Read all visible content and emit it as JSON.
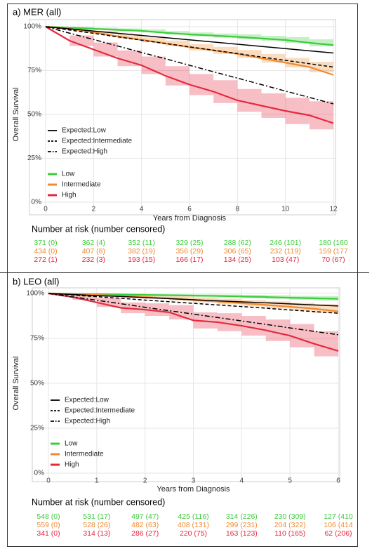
{
  "chart_data": [
    {
      "type": "line",
      "title": "a)  MER (all)",
      "xlabel": "Years from Diagnosis",
      "ylabel": "Overall Survival",
      "x": [
        0,
        1,
        2,
        3,
        4,
        5,
        6,
        7,
        8,
        9,
        10,
        11,
        12
      ],
      "xlim": [
        0,
        12
      ],
      "xticks": [
        0,
        2,
        4,
        6,
        8,
        10,
        12
      ],
      "ylim": [
        0,
        100
      ],
      "yticks": [
        {
          "value": 0,
          "label": "0%"
        },
        {
          "value": 25,
          "label": "25%"
        },
        {
          "value": 50,
          "label": "50%"
        },
        {
          "value": 75,
          "label": "75%"
        },
        {
          "value": 100,
          "label": "100%"
        }
      ],
      "grid": true,
      "series": [
        {
          "name": "Expected:Low",
          "color": "#000000",
          "linestyle": "solid",
          "values": [
            100,
            98.75,
            97.5,
            96.25,
            95,
            93.75,
            92.5,
            91.25,
            90,
            88.75,
            87.5,
            86.25,
            85
          ]
        },
        {
          "name": "Expected:Intermediate",
          "color": "#000000",
          "linestyle": "dashed",
          "values": [
            100,
            98.1,
            96.2,
            94.2,
            92.3,
            90.4,
            88.5,
            86.6,
            84.7,
            82.7,
            80.8,
            78.9,
            77
          ]
        },
        {
          "name": "Expected:High",
          "color": "#000000",
          "linestyle": "dashdot",
          "values": [
            100,
            96.3,
            92.7,
            89,
            85.3,
            81.7,
            78,
            74.3,
            70.7,
            67,
            63.3,
            59.7,
            56
          ]
        },
        {
          "name": "Low",
          "color": "#3dcc3d",
          "linestyle": "solid",
          "values": [
            100,
            99.4,
            98.8,
            98.2,
            97.6,
            96.5,
            95.6,
            94.9,
            94.2,
            93.3,
            92.4,
            90.8,
            89.5
          ],
          "band_lower": [
            100,
            99,
            98.2,
            97.4,
            96.7,
            95.5,
            94.5,
            93.7,
            92.8,
            91.8,
            90.7,
            88.8,
            87
          ],
          "band_upper": [
            100,
            99.8,
            99.4,
            99,
            98.5,
            97.5,
            96.7,
            96.1,
            95.6,
            94.8,
            94.1,
            92.8,
            92
          ]
        },
        {
          "name": "Intermediate",
          "color": "#f08a32",
          "linestyle": "solid",
          "values": [
            100,
            98.8,
            96.8,
            94.5,
            92.5,
            90.5,
            88.3,
            86.5,
            84.5,
            82,
            79.5,
            77,
            72.5
          ],
          "band_lower": [
            100,
            98.2,
            95.9,
            93.3,
            91.1,
            88.9,
            86.5,
            84.5,
            82.3,
            79.5,
            76.8,
            74,
            69
          ],
          "band_upper": [
            100,
            99.4,
            97.7,
            95.7,
            93.9,
            92.1,
            90.1,
            88.5,
            86.7,
            84.5,
            82.2,
            80,
            76
          ]
        },
        {
          "name": "High",
          "color": "#e52a3e",
          "linestyle": "solid",
          "values": [
            100,
            92,
            87,
            82,
            78,
            72,
            67,
            63,
            58,
            55,
            52,
            49.5,
            45
          ],
          "band_lower": [
            100,
            89,
            83,
            77.5,
            73,
            66.5,
            61,
            56.5,
            51.5,
            48,
            44.5,
            41.5,
            38
          ],
          "band_upper": [
            100,
            95,
            91,
            86.5,
            83,
            77.5,
            73,
            69.5,
            64.5,
            62,
            59.5,
            57.5,
            52
          ]
        }
      ],
      "risk_table": {
        "title": "Number at risk (number censored)",
        "rows": [
          {
            "color": "#3dcc3d",
            "cells": [
              "371 (0)",
              "362 (4)",
              "352 (11)",
              "329 (25)",
              "288 (62)",
              "246 (101)",
              "180 (160"
            ]
          },
          {
            "color": "#f08a32",
            "cells": [
              "434 (0)",
              "407 (8)",
              "382 (19)",
              "356 (29)",
              "306 (65)",
              "232 (119)",
              "159 (177"
            ]
          },
          {
            "color": "#e52a3e",
            "cells": [
              "272 (1)",
              "232 (3)",
              "193 (15)",
              "166 (17)",
              "134 (25)",
              "103 (47)",
              "70 (67)"
            ]
          }
        ]
      }
    },
    {
      "type": "line",
      "title": "b)  LEO (all)",
      "xlabel": "Years from Diagnosis",
      "ylabel": "Overall Survival",
      "x": [
        0,
        0.5,
        1,
        1.5,
        2,
        2.5,
        3,
        3.5,
        4,
        4.5,
        5,
        5.5,
        6
      ],
      "xlim": [
        0,
        6
      ],
      "xticks": [
        0,
        1,
        2,
        3,
        4,
        5,
        6
      ],
      "ylim": [
        0,
        100
      ],
      "yticks": [
        {
          "value": 0,
          "label": "0%"
        },
        {
          "value": 25,
          "label": "25%"
        },
        {
          "value": 50,
          "label": "50%"
        },
        {
          "value": 75,
          "label": "75%"
        },
        {
          "value": 100,
          "label": "100%"
        }
      ],
      "grid": true,
      "series": [
        {
          "name": "Expected:Low",
          "color": "#000000",
          "linestyle": "solid",
          "values": [
            100,
            99.4,
            98.8,
            98.3,
            97.7,
            97.1,
            96.5,
            95.9,
            95.3,
            94.8,
            94.2,
            93.6,
            93
          ]
        },
        {
          "name": "Expected:Intermediate",
          "color": "#000000",
          "linestyle": "dashed",
          "values": [
            100,
            99.1,
            98.2,
            97.3,
            96.3,
            95.4,
            94.5,
            93.6,
            92.7,
            91.8,
            90.8,
            89.9,
            89
          ]
        },
        {
          "name": "Expected:High",
          "color": "#000000",
          "linestyle": "dashdot",
          "values": [
            100,
            98.1,
            96.2,
            94.3,
            92.3,
            90.4,
            88.5,
            86.6,
            84.7,
            82.8,
            80.8,
            78.9,
            77
          ]
        },
        {
          "name": "Low",
          "color": "#3dcc3d",
          "linestyle": "solid",
          "values": [
            100,
            99.8,
            99.6,
            99.4,
            99.2,
            99,
            98.8,
            98.6,
            98.3,
            98,
            97.6,
            97.3,
            97
          ],
          "band_lower": [
            100,
            99.6,
            99.3,
            99,
            98.7,
            98.4,
            98.1,
            97.8,
            97.4,
            97,
            96.5,
            96,
            95.5
          ],
          "band_upper": [
            100,
            100,
            99.9,
            99.8,
            99.7,
            99.6,
            99.5,
            99.4,
            99.2,
            99,
            98.7,
            98.5,
            98.3
          ]
        },
        {
          "name": "Intermediate",
          "color": "#f08a32",
          "linestyle": "solid",
          "values": [
            100,
            99.6,
            99.2,
            98.7,
            98,
            97.2,
            96.4,
            95.5,
            94.6,
            93.6,
            92.6,
            91.5,
            90
          ],
          "band_lower": [
            100,
            99.2,
            98.6,
            97.9,
            97,
            96,
            95,
            93.9,
            92.8,
            91.6,
            90.4,
            89,
            87
          ],
          "band_upper": [
            100,
            100,
            99.8,
            99.5,
            99,
            98.4,
            97.8,
            97.1,
            96.4,
            95.6,
            94.8,
            94,
            93
          ]
        },
        {
          "name": "High",
          "color": "#e52a3e",
          "linestyle": "solid",
          "values": [
            100,
            98,
            95,
            92,
            91,
            89.5,
            85,
            84,
            82,
            79.5,
            76.5,
            72,
            68
          ],
          "band_lower": [
            100,
            96.5,
            92.5,
            89,
            87.5,
            85.5,
            80.5,
            79,
            76.5,
            73.5,
            70,
            65,
            62
          ],
          "band_upper": [
            100,
            99.5,
            97.5,
            95,
            94.5,
            93.5,
            89.5,
            89,
            87.5,
            85.5,
            83,
            79,
            74
          ]
        }
      ],
      "risk_table": {
        "title": "Number at risk (number censored)",
        "rows": [
          {
            "color": "#3dcc3d",
            "cells": [
              "548 (0)",
              "531 (17)",
              "497 (47)",
              "425 (116)",
              "314 (226)",
              "230 (309)",
              "127 (410"
            ]
          },
          {
            "color": "#f08a32",
            "cells": [
              "559 (0)",
              "528 (26)",
              "482 (63)",
              "408 (131)",
              "299 (231)",
              "204 (322)",
              "106 (414"
            ]
          },
          {
            "color": "#e52a3e",
            "cells": [
              "341 (0)",
              "314 (13)",
              "286 (27)",
              "220 (75)",
              "163 (123)",
              "110 (165)",
              "62 (206)"
            ]
          }
        ]
      }
    }
  ]
}
